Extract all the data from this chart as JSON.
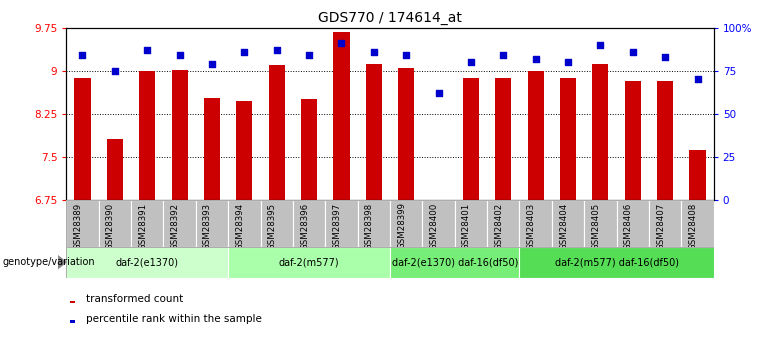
{
  "title": "GDS770 / 174614_at",
  "samples": [
    "GSM28389",
    "GSM28390",
    "GSM28391",
    "GSM28392",
    "GSM28393",
    "GSM28394",
    "GSM28395",
    "GSM28396",
    "GSM28397",
    "GSM28398",
    "GSM28399",
    "GSM28400",
    "GSM28401",
    "GSM28402",
    "GSM28403",
    "GSM28404",
    "GSM28405",
    "GSM28406",
    "GSM28407",
    "GSM28408"
  ],
  "transformed_count": [
    8.88,
    7.82,
    9.0,
    9.02,
    8.52,
    8.48,
    9.1,
    8.5,
    9.68,
    9.12,
    9.05,
    6.72,
    8.88,
    8.88,
    9.0,
    8.88,
    9.12,
    8.82,
    8.82,
    7.62
  ],
  "percentile": [
    84,
    75,
    87,
    84,
    79,
    86,
    87,
    84,
    91,
    86,
    84,
    62,
    80,
    84,
    82,
    80,
    90,
    86,
    83,
    70
  ],
  "ylim": [
    6.75,
    9.75
  ],
  "yticks": [
    6.75,
    7.5,
    8.25,
    9.0,
    9.75
  ],
  "ytick_labels": [
    "6.75",
    "7.5",
    "8.25",
    "9",
    "9.75"
  ],
  "right_yticks": [
    0,
    25,
    50,
    75,
    100
  ],
  "right_ytick_labels": [
    "0",
    "25",
    "50",
    "75",
    "100%"
  ],
  "bar_color": "#cc0000",
  "dot_color": "#0000cc",
  "groups": [
    {
      "label": "daf-2(e1370)",
      "start": 0,
      "end": 5,
      "color": "#ccffcc"
    },
    {
      "label": "daf-2(m577)",
      "start": 5,
      "end": 10,
      "color": "#aaffaa"
    },
    {
      "label": "daf-2(e1370) daf-16(df50)",
      "start": 10,
      "end": 14,
      "color": "#77ee77"
    },
    {
      "label": "daf-2(m577) daf-16(df50)",
      "start": 14,
      "end": 20,
      "color": "#55dd55"
    }
  ],
  "group_label_prefix": "genotype/variation",
  "legend_items": [
    {
      "label": "transformed count",
      "color": "#cc0000"
    },
    {
      "label": "percentile rank within the sample",
      "color": "#0000cc"
    }
  ],
  "title_fontsize": 10,
  "tick_fontsize": 7.5,
  "bar_width": 0.5,
  "sample_box_color": "#c0c0c0"
}
